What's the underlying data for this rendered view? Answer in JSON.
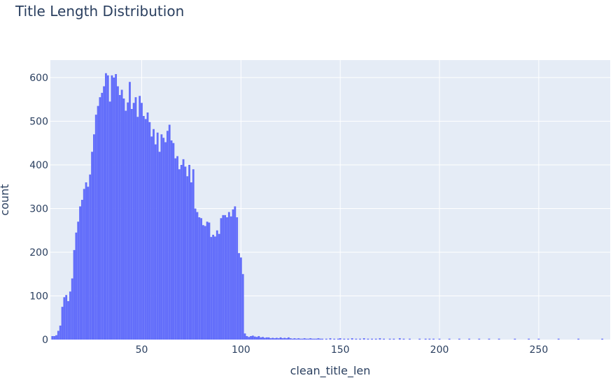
{
  "chart_data": {
    "type": "bar",
    "title": "Title Length Distribution",
    "xlabel": "clean_title_len",
    "ylabel": "count",
    "xlim": [
      4,
      286
    ],
    "ylim": [
      0,
      640
    ],
    "xticks": [
      50,
      100,
      150,
      200,
      250
    ],
    "yticks": [
      0,
      100,
      200,
      300,
      400,
      500,
      600
    ],
    "grid": true,
    "legend": "none",
    "bin_width": 1,
    "colors": {
      "bars": "#636efa",
      "plot_bg": "#e5ecf6",
      "grid": "#ffffff",
      "text": "#2a3f5f"
    },
    "bins": [
      [
        5,
        8
      ],
      [
        6,
        8
      ],
      [
        7,
        10
      ],
      [
        8,
        20
      ],
      [
        9,
        32
      ],
      [
        10,
        75
      ],
      [
        11,
        97
      ],
      [
        12,
        102
      ],
      [
        13,
        88
      ],
      [
        14,
        110
      ],
      [
        15,
        140
      ],
      [
        16,
        205
      ],
      [
        17,
        245
      ],
      [
        18,
        270
      ],
      [
        19,
        305
      ],
      [
        20,
        320
      ],
      [
        21,
        345
      ],
      [
        22,
        360
      ],
      [
        23,
        350
      ],
      [
        24,
        378
      ],
      [
        25,
        430
      ],
      [
        26,
        470
      ],
      [
        27,
        515
      ],
      [
        28,
        535
      ],
      [
        29,
        555
      ],
      [
        30,
        565
      ],
      [
        31,
        580
      ],
      [
        32,
        610
      ],
      [
        33,
        605
      ],
      [
        34,
        545
      ],
      [
        35,
        605
      ],
      [
        36,
        600
      ],
      [
        37,
        608
      ],
      [
        38,
        580
      ],
      [
        39,
        560
      ],
      [
        40,
        572
      ],
      [
        41,
        552
      ],
      [
        42,
        524
      ],
      [
        43,
        543
      ],
      [
        44,
        590
      ],
      [
        45,
        528
      ],
      [
        46,
        542
      ],
      [
        47,
        555
      ],
      [
        48,
        510
      ],
      [
        49,
        558
      ],
      [
        50,
        542
      ],
      [
        51,
        512
      ],
      [
        52,
        505
      ],
      [
        53,
        520
      ],
      [
        54,
        498
      ],
      [
        55,
        465
      ],
      [
        56,
        482
      ],
      [
        57,
        447
      ],
      [
        58,
        474
      ],
      [
        59,
        430
      ],
      [
        60,
        470
      ],
      [
        61,
        462
      ],
      [
        62,
        452
      ],
      [
        63,
        478
      ],
      [
        64,
        492
      ],
      [
        65,
        456
      ],
      [
        66,
        450
      ],
      [
        67,
        415
      ],
      [
        68,
        420
      ],
      [
        69,
        390
      ],
      [
        70,
        400
      ],
      [
        71,
        413
      ],
      [
        72,
        396
      ],
      [
        73,
        374
      ],
      [
        74,
        400
      ],
      [
        75,
        360
      ],
      [
        76,
        390
      ],
      [
        77,
        300
      ],
      [
        78,
        292
      ],
      [
        79,
        280
      ],
      [
        80,
        278
      ],
      [
        81,
        262
      ],
      [
        82,
        260
      ],
      [
        83,
        270
      ],
      [
        84,
        268
      ],
      [
        85,
        235
      ],
      [
        86,
        240
      ],
      [
        87,
        236
      ],
      [
        88,
        250
      ],
      [
        89,
        242
      ],
      [
        90,
        278
      ],
      [
        91,
        285
      ],
      [
        92,
        285
      ],
      [
        93,
        280
      ],
      [
        94,
        292
      ],
      [
        95,
        282
      ],
      [
        96,
        298
      ],
      [
        97,
        305
      ],
      [
        98,
        280
      ],
      [
        99,
        198
      ],
      [
        100,
        188
      ],
      [
        101,
        150
      ],
      [
        102,
        14
      ],
      [
        103,
        8
      ],
      [
        104,
        6
      ],
      [
        105,
        8
      ],
      [
        106,
        9
      ],
      [
        107,
        7
      ],
      [
        108,
        6
      ],
      [
        109,
        8
      ],
      [
        110,
        5
      ],
      [
        111,
        6
      ],
      [
        112,
        4
      ],
      [
        113,
        5
      ],
      [
        114,
        5
      ],
      [
        115,
        3
      ],
      [
        116,
        4
      ],
      [
        117,
        3
      ],
      [
        118,
        4
      ],
      [
        119,
        3
      ],
      [
        120,
        5
      ],
      [
        121,
        3
      ],
      [
        122,
        4
      ],
      [
        123,
        3
      ],
      [
        124,
        5
      ],
      [
        125,
        3
      ],
      [
        126,
        2
      ],
      [
        127,
        3
      ],
      [
        128,
        2
      ],
      [
        129,
        3
      ],
      [
        130,
        2
      ],
      [
        131,
        2
      ],
      [
        132,
        3
      ],
      [
        133,
        2
      ],
      [
        134,
        2
      ],
      [
        135,
        3
      ],
      [
        136,
        2
      ],
      [
        137,
        2
      ],
      [
        138,
        2
      ],
      [
        139,
        3
      ],
      [
        140,
        2
      ],
      [
        141,
        2
      ],
      [
        143,
        2
      ],
      [
        145,
        3
      ],
      [
        147,
        2
      ],
      [
        149,
        2
      ],
      [
        150,
        3
      ],
      [
        152,
        2
      ],
      [
        154,
        2
      ],
      [
        156,
        3
      ],
      [
        158,
        2
      ],
      [
        160,
        2
      ],
      [
        162,
        3
      ],
      [
        164,
        2
      ],
      [
        166,
        2
      ],
      [
        168,
        2
      ],
      [
        170,
        3
      ],
      [
        172,
        2
      ],
      [
        175,
        2
      ],
      [
        177,
        2
      ],
      [
        180,
        3
      ],
      [
        182,
        2
      ],
      [
        185,
        2
      ],
      [
        190,
        2
      ],
      [
        193,
        2
      ],
      [
        195,
        2
      ],
      [
        197,
        2
      ],
      [
        200,
        2
      ],
      [
        205,
        2
      ],
      [
        210,
        2
      ],
      [
        215,
        2
      ],
      [
        220,
        2
      ],
      [
        225,
        2
      ],
      [
        230,
        2
      ],
      [
        238,
        2
      ],
      [
        245,
        2
      ],
      [
        250,
        2
      ],
      [
        260,
        2
      ],
      [
        270,
        2
      ],
      [
        282,
        2
      ]
    ]
  }
}
